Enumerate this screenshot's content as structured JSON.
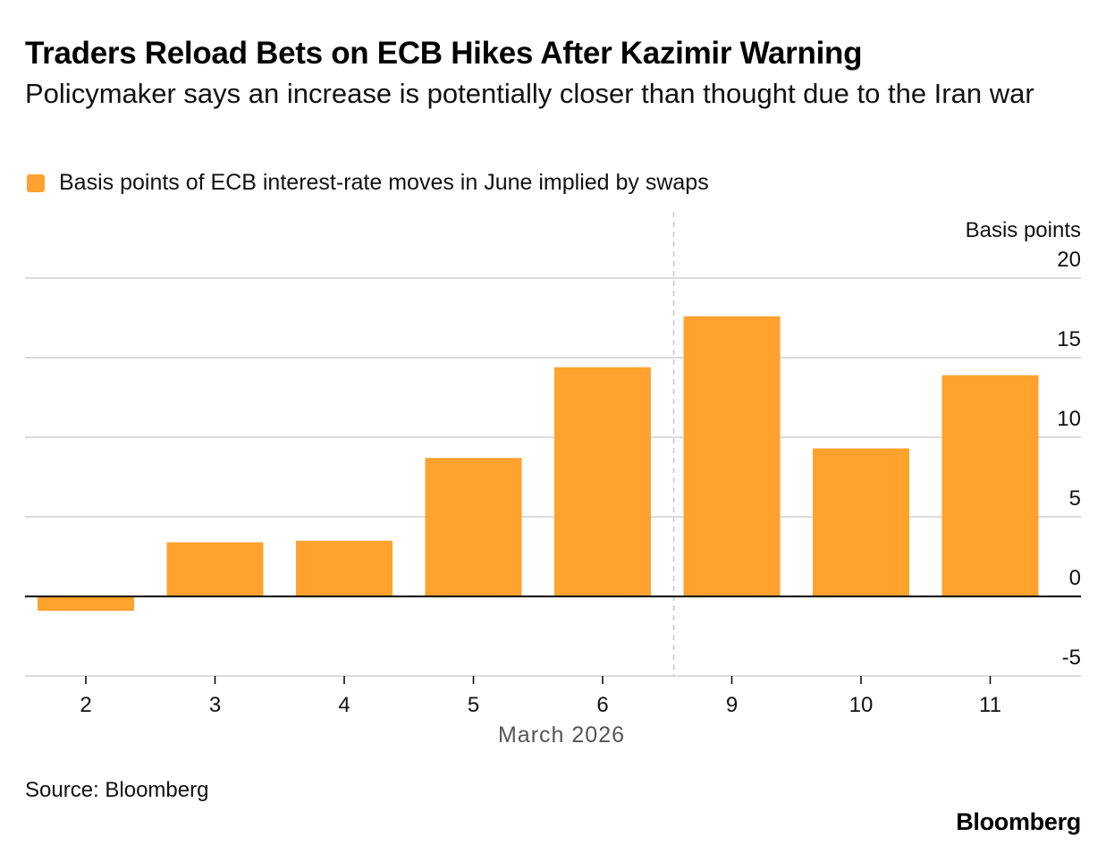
{
  "header": {
    "title": "Traders Reload Bets on ECB Hikes After Kazimir Warning",
    "subtitle": "Policymaker says an increase is potentially closer than thought due to the Iran war"
  },
  "legend": {
    "label": "Basis points of ECB interest-rate moves in June implied by swaps",
    "color": "#FFA22E"
  },
  "footer": {
    "source": "Source: Bloomberg",
    "brand": "Bloomberg"
  },
  "colors": {
    "bar": "#FFA22E",
    "grid": "#D0D0D0",
    "zero_line": "#000000",
    "axis_text": "#111111",
    "xlabel_text": "#555555",
    "divider": "#C8C8C8"
  },
  "chart_data": {
    "type": "bar",
    "title": "Traders Reload Bets on ECB Hikes After Kazimir Warning",
    "categories": [
      "2",
      "3",
      "4",
      "5",
      "6",
      "9",
      "10",
      "11"
    ],
    "series": [
      {
        "name": "Basis points of ECB interest-rate moves in June implied by swaps",
        "values": [
          -0.9,
          3.4,
          3.5,
          8.7,
          14.4,
          17.6,
          9.3,
          13.9
        ]
      }
    ],
    "xlabel": "March 2026",
    "ylabel": "Basis points",
    "ylim": [
      -5,
      20
    ],
    "yticks": [
      -5,
      0,
      5,
      10,
      15,
      20
    ],
    "y_axis_side": "right",
    "grid": true,
    "legend_position": "top-left",
    "divider_between": [
      "6",
      "9"
    ]
  }
}
